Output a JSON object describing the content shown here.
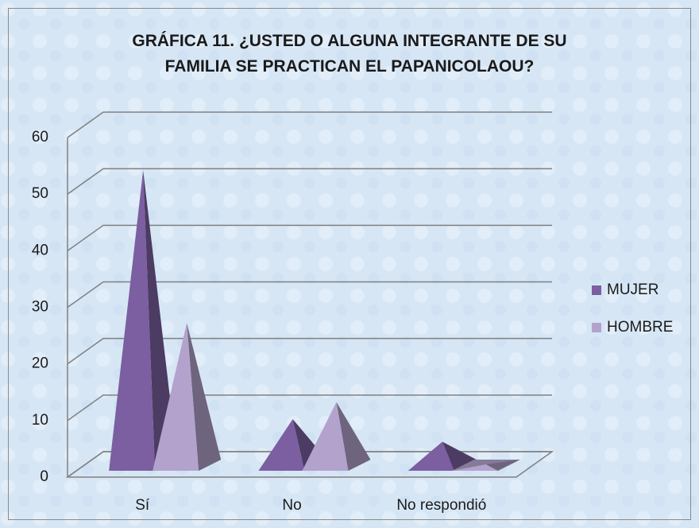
{
  "chart_data": {
    "type": "pyramid3d",
    "title": "GRÁFICA 11. ¿USTED O ALGUNA INTEGRANTE DE SU FAMILIA SE PRACTICAN EL PAPANICOLAOU?",
    "categories": [
      "Sí",
      "No",
      "No respondió"
    ],
    "series": [
      {
        "name": "MUJER",
        "color": "#7b5fa0",
        "values": [
          52,
          8,
          4
        ]
      },
      {
        "name": "HOMBRE",
        "color": "#b3a2cc",
        "values": [
          25,
          11,
          0
        ]
      }
    ],
    "ylim": [
      0,
      60
    ],
    "yticks": [
      0,
      10,
      20,
      30,
      40,
      50,
      60
    ],
    "grid": true,
    "legend": "right"
  }
}
